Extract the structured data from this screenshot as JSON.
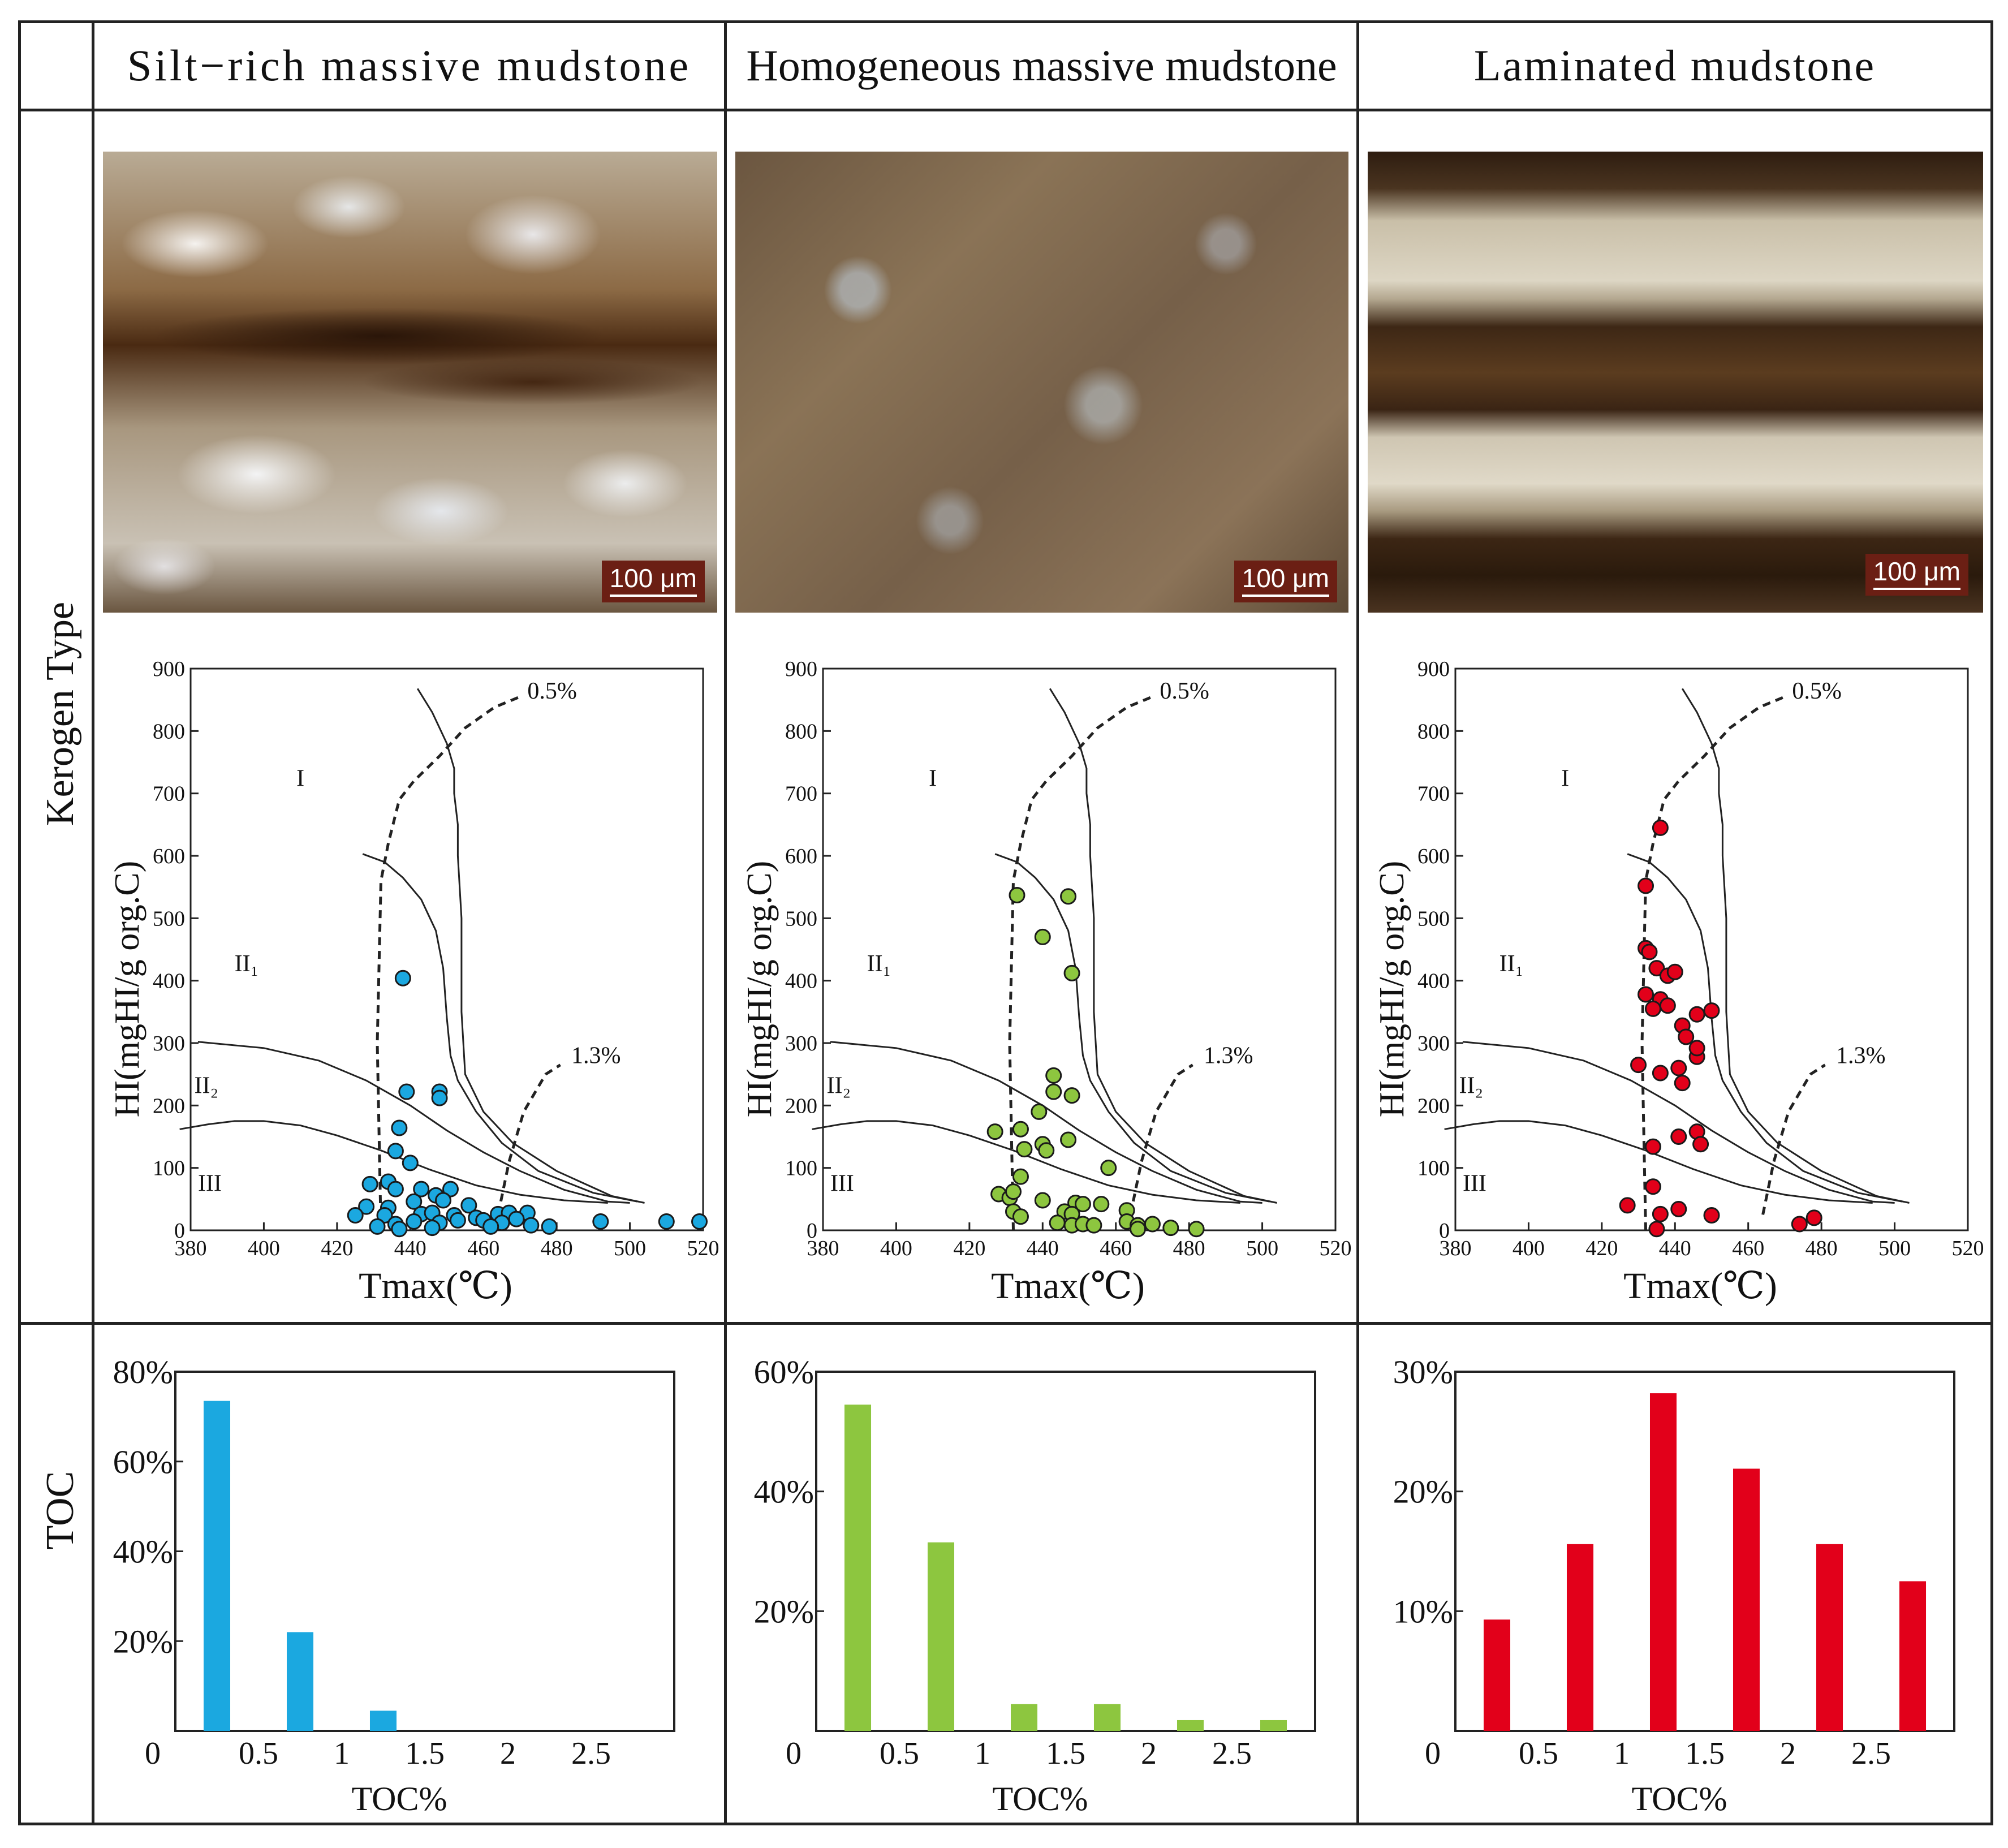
{
  "headers": {
    "silt": "Silt−rich massive mudstone",
    "homo": "Homogeneous massive mudstone",
    "lam": "Laminated mudstone"
  },
  "row_labels": {
    "kerogen": "Kerogen Type",
    "toc": "TOC"
  },
  "photos": [
    {
      "scale_label": "100 μm"
    },
    {
      "scale_label": "100 μm"
    },
    {
      "scale_label": "100 μm"
    }
  ],
  "colors": {
    "silt": "#1ba8e0",
    "homo": "#8dc63f",
    "lam": "#e2001a"
  },
  "chart_data": [
    {
      "type": "scatter",
      "panel": "Silt-rich massive mudstone",
      "xlabel": "Tmax(℃)",
      "ylabel": "HI(mgHI/g org.C)",
      "xlim": [
        380,
        520
      ],
      "ylim": [
        0,
        900
      ],
      "xticks": [
        "380",
        "400",
        "420",
        "440",
        "460",
        "480",
        "500",
        "520"
      ],
      "yticks": [
        "0",
        "100",
        "200",
        "300",
        "400",
        "500",
        "600",
        "700",
        "800",
        "900"
      ],
      "annotations": [
        "0.5%",
        "1.3%",
        "I",
        "II₁",
        "II₂",
        "III"
      ],
      "points": [
        [
          438,
          404
        ],
        [
          439,
          222
        ],
        [
          448,
          222
        ],
        [
          448,
          212
        ],
        [
          437,
          164
        ],
        [
          436,
          127
        ],
        [
          440,
          108
        ],
        [
          434,
          78
        ],
        [
          429,
          74
        ],
        [
          436,
          66
        ],
        [
          443,
          66
        ],
        [
          447,
          56
        ],
        [
          451,
          66
        ],
        [
          441,
          46
        ],
        [
          449,
          48
        ],
        [
          456,
          40
        ],
        [
          428,
          38
        ],
        [
          434,
          36
        ],
        [
          425,
          24
        ],
        [
          433,
          24
        ],
        [
          443,
          26
        ],
        [
          446,
          28
        ],
        [
          452,
          24
        ],
        [
          458,
          20
        ],
        [
          464,
          26
        ],
        [
          467,
          28
        ],
        [
          472,
          28
        ],
        [
          431,
          6
        ],
        [
          436,
          10
        ],
        [
          441,
          14
        ],
        [
          448,
          12
        ],
        [
          453,
          16
        ],
        [
          460,
          16
        ],
        [
          465,
          12
        ],
        [
          469,
          18
        ],
        [
          473,
          8
        ],
        [
          478,
          6
        ],
        [
          492,
          14
        ],
        [
          510,
          14
        ],
        [
          519,
          14
        ],
        [
          437,
          2
        ],
        [
          446,
          4
        ],
        [
          462,
          6
        ]
      ]
    },
    {
      "type": "scatter",
      "panel": "Homogeneous massive mudstone",
      "xlabel": "Tmax(℃)",
      "ylabel": "HI(mgHI/g org.C)",
      "xlim": [
        380,
        520
      ],
      "ylim": [
        0,
        900
      ],
      "xticks": [
        "380",
        "400",
        "420",
        "440",
        "460",
        "480",
        "500",
        "520"
      ],
      "yticks": [
        "0",
        "100",
        "200",
        "300",
        "400",
        "500",
        "600",
        "700",
        "800",
        "900"
      ],
      "annotations": [
        "0.5%",
        "1.3%",
        "I",
        "II₁",
        "II₂",
        "III"
      ],
      "points": [
        [
          433,
          537
        ],
        [
          447,
          535
        ],
        [
          440,
          470
        ],
        [
          448,
          412
        ],
        [
          443,
          248
        ],
        [
          443,
          222
        ],
        [
          448,
          216
        ],
        [
          439,
          190
        ],
        [
          434,
          162
        ],
        [
          427,
          158
        ],
        [
          440,
          138
        ],
        [
          447,
          145
        ],
        [
          435,
          130
        ],
        [
          441,
          128
        ],
        [
          458,
          100
        ],
        [
          434,
          86
        ],
        [
          428,
          58
        ],
        [
          431,
          52
        ],
        [
          432,
          62
        ],
        [
          440,
          48
        ],
        [
          449,
          44
        ],
        [
          451,
          42
        ],
        [
          456,
          42
        ],
        [
          432,
          30
        ],
        [
          434,
          22
        ],
        [
          446,
          30
        ],
        [
          448,
          26
        ],
        [
          463,
          32
        ],
        [
          444,
          12
        ],
        [
          448,
          8
        ],
        [
          451,
          10
        ],
        [
          454,
          8
        ],
        [
          463,
          14
        ],
        [
          466,
          8
        ],
        [
          470,
          10
        ],
        [
          475,
          4
        ],
        [
          482,
          2
        ],
        [
          466,
          2
        ]
      ]
    },
    {
      "type": "scatter",
      "panel": "Laminated mudstone",
      "xlabel": "Tmax(℃)",
      "ylabel": "HI(mgHI/g org.C)",
      "xlim": [
        380,
        520
      ],
      "ylim": [
        0,
        900
      ],
      "xticks": [
        "380",
        "400",
        "420",
        "440",
        "460",
        "480",
        "500",
        "520"
      ],
      "yticks": [
        "0",
        "100",
        "200",
        "300",
        "400",
        "500",
        "600",
        "700",
        "800",
        "900"
      ],
      "annotations": [
        "0.5%",
        "1.3%",
        "I",
        "II₁",
        "II₂",
        "III"
      ],
      "points": [
        [
          436,
          645
        ],
        [
          432,
          552
        ],
        [
          432,
          452
        ],
        [
          433,
          446
        ],
        [
          435,
          420
        ],
        [
          438,
          408
        ],
        [
          440,
          414
        ],
        [
          432,
          378
        ],
        [
          436,
          370
        ],
        [
          434,
          355
        ],
        [
          438,
          360
        ],
        [
          442,
          328
        ],
        [
          446,
          346
        ],
        [
          450,
          352
        ],
        [
          443,
          310
        ],
        [
          446,
          278
        ],
        [
          446,
          292
        ],
        [
          436,
          252
        ],
        [
          441,
          260
        ],
        [
          442,
          236
        ],
        [
          430,
          265
        ],
        [
          434,
          134
        ],
        [
          446,
          158
        ],
        [
          447,
          138
        ],
        [
          441,
          150
        ],
        [
          434,
          70
        ],
        [
          427,
          40
        ],
        [
          436,
          26
        ],
        [
          441,
          34
        ],
        [
          450,
          24
        ],
        [
          474,
          10
        ],
        [
          478,
          20
        ],
        [
          435,
          2
        ]
      ]
    },
    {
      "type": "bar",
      "panel": "Silt-rich massive mudstone",
      "xlabel": "TOC%",
      "xticks": [
        "0",
        "0.5",
        "1",
        "1.5",
        "2",
        "2.5"
      ],
      "yticks": [
        "20%",
        "40%",
        "60%",
        "80%"
      ],
      "ylim": [
        0,
        80
      ],
      "categories": [
        "0-0.5",
        "0.5-1",
        "1-1.5",
        "1.5-2",
        "2-2.5",
        "2.5-3"
      ],
      "values": [
        73.5,
        22,
        4.5,
        0,
        0,
        0
      ]
    },
    {
      "type": "bar",
      "panel": "Homogeneous massive mudstone",
      "xlabel": "TOC%",
      "xticks": [
        "0",
        "0.5",
        "1",
        "1.5",
        "2",
        "2.5"
      ],
      "yticks": [
        "20%",
        "40%",
        "60%"
      ],
      "ylim": [
        0,
        60
      ],
      "categories": [
        "0-0.5",
        "0.5-1",
        "1-1.5",
        "1.5-2",
        "2-2.5",
        "2.5-3"
      ],
      "values": [
        54.5,
        31.5,
        4.5,
        4.5,
        1.8,
        1.8
      ]
    },
    {
      "type": "bar",
      "panel": "Laminated mudstone",
      "xlabel": "TOC%",
      "xticks": [
        "0",
        "0.5",
        "1",
        "1.5",
        "2",
        "2.5"
      ],
      "yticks": [
        "10%",
        "20%",
        "30%"
      ],
      "ylim": [
        0,
        30
      ],
      "categories": [
        "0-0.5",
        "0.5-1",
        "1-1.5",
        "1.5-2",
        "2-2.5",
        "2.5-3"
      ],
      "values": [
        9.3,
        15.6,
        28.2,
        21.9,
        15.6,
        12.5
      ]
    }
  ]
}
